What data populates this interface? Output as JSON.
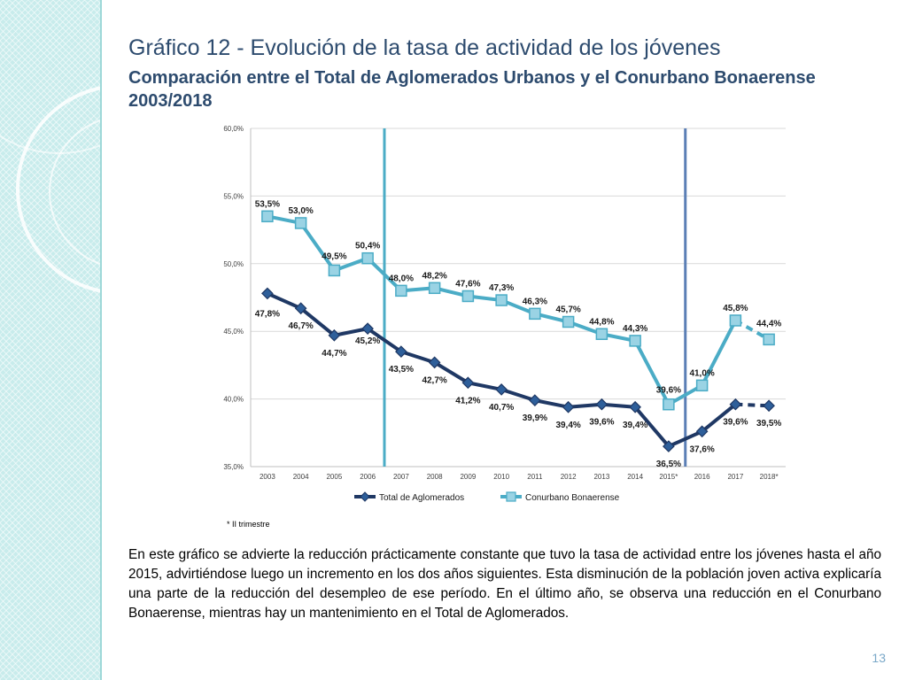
{
  "page": {
    "title": "Gráfico 12 - Evolución de la tasa de actividad de los jóvenes",
    "subtitle": "Comparación entre el Total de Aglomerados Urbanos y el Conurbano Bonaerense 2003/2018",
    "note": "* II trimestre",
    "body_text": "En este gráfico se advierte la reducción prácticamente constante que tuvo la tasa de actividad entre los jóvenes hasta el año 2015, advirtiéndose luego un incremento en los dos años siguientes. Esta disminución de la población joven activa explicaría una parte de la reducción del desempleo de ese período. En el último año, se observa una reducción en el Conurbano Bonaerense, mientras hay un mantenimiento en el Total de  Aglomerados.",
    "page_number": "13"
  },
  "colors": {
    "title": "#2d4b6e",
    "series_total": "#1f3864",
    "series_conurbano": "#4bacc6",
    "marker_conurbano_fill": "#9ad3e4",
    "marker_total_fill": "#2e5f9a",
    "period_line_1": "#4bacc6",
    "period_line_2": "#5b7fb5",
    "grid": "#d9d9d9"
  },
  "chart_data": {
    "type": "line",
    "categories": [
      "2003",
      "2004",
      "2005",
      "2006",
      "2007",
      "2008",
      "2009",
      "2010",
      "2011",
      "2012",
      "2013",
      "2014",
      "2015*",
      "2016",
      "2017",
      "2018*"
    ],
    "ylim": [
      35,
      60
    ],
    "yticks": [
      "35,0%",
      "40,0%",
      "45,0%",
      "50,0%",
      "55,0%",
      "60,0%"
    ],
    "period_markers_after": [
      "2006",
      "2015*"
    ],
    "legend": "bottom",
    "series": [
      {
        "name": "Total de Aglomerados",
        "values": [
          47.8,
          46.7,
          44.7,
          45.2,
          43.5,
          42.7,
          41.2,
          40.7,
          39.9,
          39.4,
          39.6,
          39.4,
          36.5,
          37.6,
          39.6,
          39.5
        ],
        "labels": [
          "47,8%",
          "46,7%",
          "44,7%",
          "45,2%",
          "43,5%",
          "42,7%",
          "41,2%",
          "40,7%",
          "39,9%",
          "39,4%",
          "39,6%",
          "39,4%",
          "36,5%",
          "37,6%",
          "39,6%",
          "39,5%"
        ],
        "dashed_last_segment": true
      },
      {
        "name": "Conurbano Bonaerense",
        "values": [
          53.5,
          53.0,
          49.5,
          50.4,
          48.0,
          48.2,
          47.6,
          47.3,
          46.3,
          45.7,
          44.8,
          44.3,
          39.6,
          41.0,
          45.8,
          44.4
        ],
        "labels": [
          "53,5%",
          "53,0%",
          "49,5%",
          "50,4%",
          "48,0%",
          "48,2%",
          "47,6%",
          "47,3%",
          "46,3%",
          "45,7%",
          "44,8%",
          "44,3%",
          "39,6%",
          "41,0%",
          "45,8%",
          "44,4%"
        ],
        "dashed_last_segment": true
      }
    ]
  }
}
